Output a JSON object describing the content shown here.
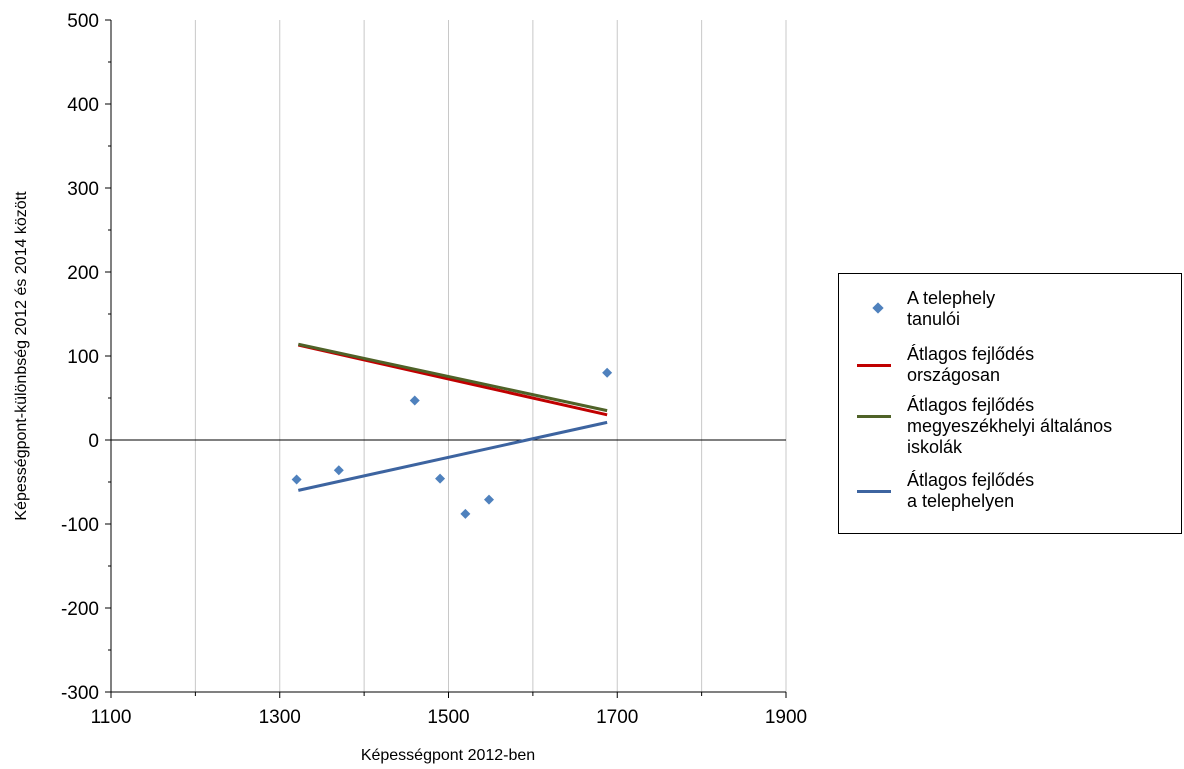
{
  "chart_data": {
    "type": "scatter",
    "xlabel": "Képességpont 2012-ben",
    "ylabel": "Képességpont-különbség 2012 és 2014 között",
    "xlim": [
      1100,
      1900
    ],
    "ylim": [
      -300,
      500
    ],
    "x_ticks": [
      "1100",
      "1300",
      "1500",
      "1700",
      "1900"
    ],
    "x_tick_values": [
      1100,
      1300,
      1500,
      1700,
      1900
    ],
    "x_minor_ticks": [
      1200,
      1400,
      1600,
      1800
    ],
    "y_ticks": [
      "500",
      "400",
      "300",
      "200",
      "100",
      "0",
      "-100",
      "-200",
      "-300"
    ],
    "y_tick_values": [
      500,
      400,
      300,
      200,
      100,
      0,
      -100,
      -200,
      -300
    ],
    "grid": "vertical",
    "zero_line": true,
    "legend_position": "right",
    "series": [
      {
        "name": "A telephely\ntanulói",
        "kind": "points",
        "color": "#4f81bd",
        "points": [
          {
            "x": 1320,
            "y": -47
          },
          {
            "x": 1370,
            "y": -36
          },
          {
            "x": 1460,
            "y": 47
          },
          {
            "x": 1490,
            "y": -46
          },
          {
            "x": 1520,
            "y": -88
          },
          {
            "x": 1548,
            "y": -71
          },
          {
            "x": 1688,
            "y": 80
          }
        ]
      },
      {
        "name": "Átlagos fejlődés\nországosan",
        "kind": "line",
        "color": "#c00000",
        "points": [
          {
            "x": 1322,
            "y": 113
          },
          {
            "x": 1688,
            "y": 30
          }
        ]
      },
      {
        "name": "Átlagos fejlődés\nmegyeszékhelyi általános\niskolák",
        "kind": "line",
        "color": "#4f6228",
        "points": [
          {
            "x": 1322,
            "y": 114
          },
          {
            "x": 1688,
            "y": 35
          }
        ]
      },
      {
        "name": "Átlagos fejlődés\na telephelyen",
        "kind": "line",
        "color": "#3d64a0",
        "points": [
          {
            "x": 1322,
            "y": -60
          },
          {
            "x": 1688,
            "y": 21
          }
        ]
      }
    ]
  }
}
